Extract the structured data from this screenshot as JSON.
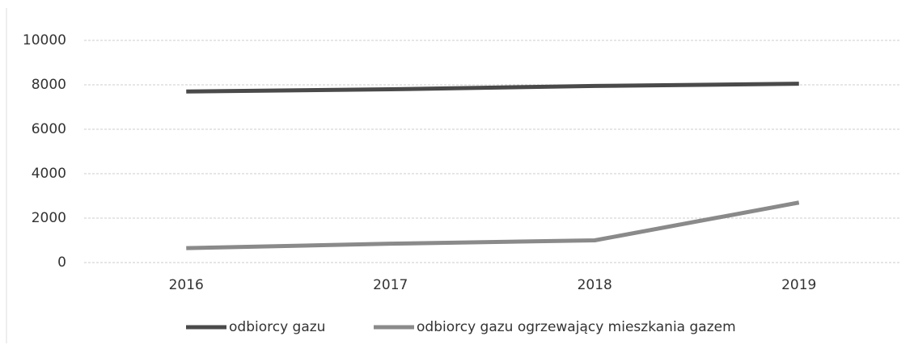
{
  "chart_data": {
    "type": "line",
    "categories": [
      "2016",
      "2017",
      "2018",
      "2019"
    ],
    "series": [
      {
        "name": "odbiorcy gazu",
        "color": "#4a4a4a",
        "values": [
          7700,
          7800,
          7950,
          8050
        ]
      },
      {
        "name": "odbiorcy gazu ogrzewający mieszkania gazem",
        "color": "#8a8a8a",
        "values": [
          650,
          850,
          1000,
          2700
        ]
      }
    ],
    "ylim": [
      0,
      10000
    ],
    "yticks": [
      0,
      2000,
      4000,
      6000,
      8000,
      10000
    ],
    "grid": true
  }
}
